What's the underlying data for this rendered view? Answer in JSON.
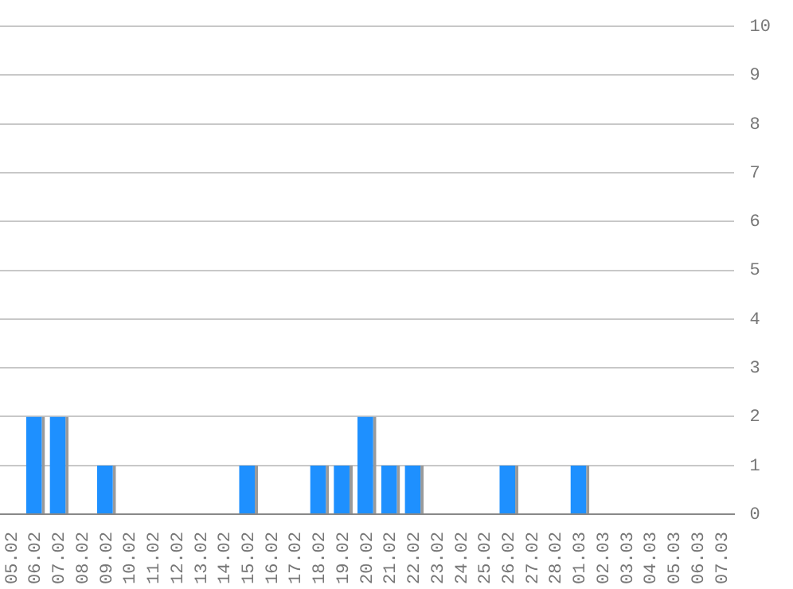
{
  "chart_data": {
    "type": "bar",
    "categories": [
      "05.02",
      "06.02",
      "07.02",
      "08.02",
      "09.02",
      "10.02",
      "11.02",
      "12.02",
      "13.02",
      "14.02",
      "15.02",
      "16.02",
      "17.02",
      "18.02",
      "19.02",
      "20.02",
      "21.02",
      "22.02",
      "23.02",
      "24.02",
      "25.02",
      "26.02",
      "27.02",
      "28.02",
      "01.03",
      "02.03",
      "03.03",
      "04.03",
      "05.03",
      "06.03",
      "07.03"
    ],
    "values": [
      0,
      2,
      2,
      0,
      1,
      0,
      0,
      0,
      0,
      0,
      1,
      0,
      0,
      1,
      1,
      2,
      1,
      1,
      0,
      0,
      0,
      1,
      0,
      0,
      1,
      0,
      0,
      0,
      0,
      0,
      0
    ],
    "color": "#1e90ff",
    "ylim": [
      0,
      10
    ],
    "yticks": [
      0,
      1,
      2,
      3,
      4,
      5,
      6,
      7,
      8,
      9,
      10
    ],
    "grid": "y",
    "legend": false
  }
}
